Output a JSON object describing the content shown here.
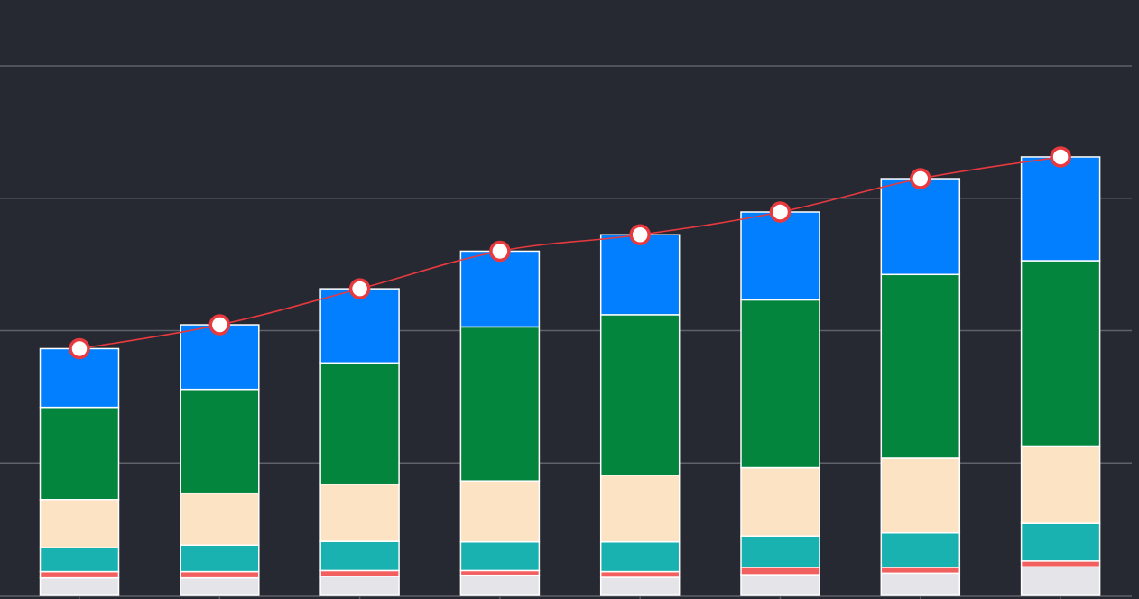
{
  "chart_data": {
    "type": "bar",
    "stacked": true,
    "categories": [
      "",
      "",
      "",
      "",
      "",
      "",
      "",
      ""
    ],
    "ylim": [
      0,
      100
    ],
    "grid": true,
    "series": [
      {
        "values": [
          3.3,
          3.3,
          3.6,
          3.8,
          3.4,
          3.9,
          4.2,
          5.4
        ],
        "color": "#e5e4e8"
      },
      {
        "values": [
          1.2,
          1.2,
          1.1,
          0.9,
          1.1,
          1.4,
          1.1,
          1.1
        ],
        "color": "#f15f5f"
      },
      {
        "values": [
          4.5,
          5.0,
          5.5,
          5.4,
          5.6,
          5.9,
          6.5,
          7.1
        ],
        "color": "#19b2b0"
      },
      {
        "values": [
          9.1,
          9.8,
          10.8,
          11.5,
          12.6,
          12.9,
          14.1,
          14.6
        ],
        "color": "#fbe3c3"
      },
      {
        "values": [
          17.4,
          19.6,
          22.9,
          29.1,
          30.3,
          31.7,
          34.7,
          35.0
        ],
        "color": "#03853e"
      },
      {
        "values": [
          11.1,
          12.2,
          14.0,
          14.3,
          15.1,
          16.6,
          18.1,
          19.6
        ],
        "color": "#017ffe"
      }
    ],
    "line": {
      "values": [
        46.6,
        51.1,
        57.9,
        65.0,
        68.1,
        72.4,
        78.7,
        82.8
      ],
      "color": "#e8393f",
      "marker_fill": "#ffffff"
    },
    "colors": {
      "background": "#262932",
      "grid": "#5f6168",
      "bar_outline": "#ffffff"
    }
  }
}
